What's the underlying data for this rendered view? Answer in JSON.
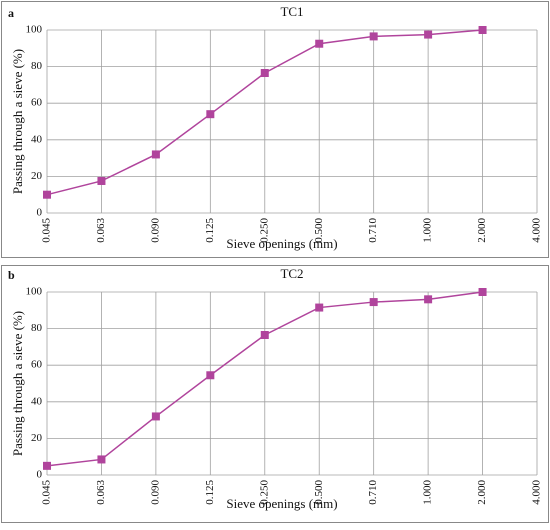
{
  "chart_data": [
    {
      "type": "line",
      "panel_label": "a",
      "title": "TC1",
      "xlabel": "Sieve openings (mm)",
      "ylabel": "Passing through a sieve (%)",
      "categories": [
        "0.045",
        "0.063",
        "0.090",
        "0.125",
        "0.250",
        "0.500",
        "0.710",
        "1.000",
        "2.000",
        "4.000"
      ],
      "values": [
        10,
        17.5,
        32,
        54,
        76.5,
        92.5,
        96.5,
        97.5,
        100,
        null
      ],
      "color": "#b0449c",
      "ylim": [
        0,
        100
      ],
      "yticks": [
        0,
        20,
        40,
        60,
        80,
        100
      ],
      "grid": true
    },
    {
      "type": "line",
      "panel_label": "b",
      "title": "TC2",
      "xlabel": "Sieve openings (mm)",
      "ylabel": "Passing through a sieve (%)",
      "categories": [
        "0.045",
        "0.063",
        "0.090",
        "0.125",
        "0.250",
        "0.500",
        "0.710",
        "1.000",
        "2.000",
        "4.000"
      ],
      "values": [
        5,
        8.5,
        32,
        54.5,
        76.5,
        91.5,
        94.5,
        96,
        100,
        null
      ],
      "color": "#b0449c",
      "ylim": [
        0,
        100
      ],
      "yticks": [
        0,
        20,
        40,
        60,
        80,
        100
      ],
      "grid": true
    }
  ]
}
